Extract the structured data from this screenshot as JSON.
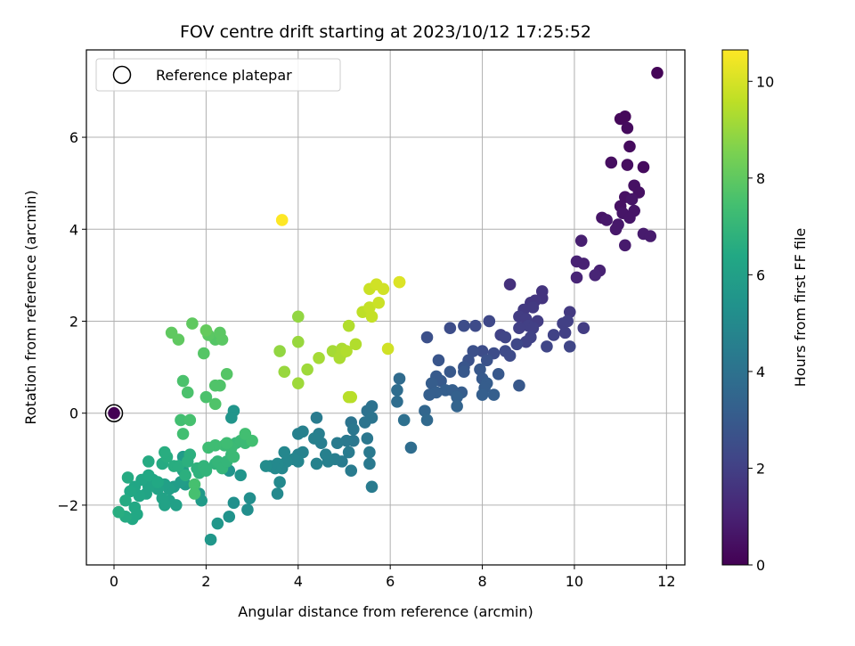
{
  "chart_data": {
    "type": "scatter",
    "title": "FOV centre drift starting at 2023/10/12 17:25:52",
    "xlabel": "Angular distance from reference (arcmin)",
    "ylabel": "Rotation from reference (arcmin)",
    "colorbar_label": "Hours from first FF file",
    "xlim": [
      -0.6,
      12.4
    ],
    "ylim": [
      -3.3,
      7.9
    ],
    "clim": [
      0,
      10.65
    ],
    "colormap": "viridis",
    "x_ticks": [
      0,
      2,
      4,
      6,
      8,
      10,
      12
    ],
    "x_tick_labels": [
      "0",
      "2",
      "4",
      "6",
      "8",
      "10",
      "12"
    ],
    "y_ticks": [
      -2,
      0,
      2,
      4,
      6
    ],
    "y_tick_labels": [
      "−2",
      "0",
      "2",
      "4",
      "6"
    ],
    "c_ticks": [
      0,
      2,
      4,
      6,
      8,
      10
    ],
    "c_tick_labels": [
      "0",
      "2",
      "4",
      "6",
      "8",
      "10"
    ],
    "grid": true,
    "legend": {
      "label": "Reference platepar",
      "position": "top-left"
    },
    "reference_point": {
      "x": 0,
      "y": 0,
      "c": 0
    },
    "points": [
      [
        11.8,
        7.4,
        0.1
      ],
      [
        11.1,
        6.45,
        0.2
      ],
      [
        11.0,
        6.4,
        0.2
      ],
      [
        11.15,
        6.2,
        0.3
      ],
      [
        11.2,
        5.8,
        0.3
      ],
      [
        11.15,
        5.4,
        0.4
      ],
      [
        11.5,
        5.35,
        0.3
      ],
      [
        10.8,
        5.45,
        0.4
      ],
      [
        11.3,
        4.95,
        0.5
      ],
      [
        11.4,
        4.8,
        0.5
      ],
      [
        11.1,
        4.7,
        0.5
      ],
      [
        11.25,
        4.65,
        0.6
      ],
      [
        11.0,
        4.5,
        0.5
      ],
      [
        11.3,
        4.4,
        0.6
      ],
      [
        11.05,
        4.35,
        0.6
      ],
      [
        10.6,
        4.25,
        0.6
      ],
      [
        10.7,
        4.2,
        0.7
      ],
      [
        11.2,
        4.25,
        0.6
      ],
      [
        10.95,
        4.1,
        0.7
      ],
      [
        10.9,
        4.0,
        0.7
      ],
      [
        11.5,
        3.9,
        0.8
      ],
      [
        11.65,
        3.85,
        0.8
      ],
      [
        11.1,
        3.65,
        0.8
      ],
      [
        10.15,
        3.75,
        0.9
      ],
      [
        10.05,
        3.3,
        1.0
      ],
      [
        10.2,
        3.25,
        1.0
      ],
      [
        10.55,
        3.1,
        1.0
      ],
      [
        10.45,
        3.0,
        1.1
      ],
      [
        10.05,
        2.95,
        1.1
      ],
      [
        8.6,
        2.8,
        1.5
      ],
      [
        9.3,
        2.65,
        1.6
      ],
      [
        9.3,
        2.5,
        1.6
      ],
      [
        9.05,
        2.4,
        1.7
      ],
      [
        9.15,
        2.45,
        1.7
      ],
      [
        8.9,
        2.25,
        1.8
      ],
      [
        9.1,
        2.3,
        1.8
      ],
      [
        8.8,
        2.1,
        1.9
      ],
      [
        8.95,
        2.05,
        1.9
      ],
      [
        9.9,
        2.2,
        1.8
      ],
      [
        9.2,
        2.0,
        1.9
      ],
      [
        9.85,
        2.0,
        2.0
      ],
      [
        9.75,
        1.95,
        2.0
      ],
      [
        9.0,
        1.9,
        2.0
      ],
      [
        8.8,
        1.85,
        2.0
      ],
      [
        9.1,
        1.85,
        2.0
      ],
      [
        8.4,
        1.7,
        2.1
      ],
      [
        10.2,
        1.85,
        1.9
      ],
      [
        9.8,
        1.75,
        2.0
      ],
      [
        9.55,
        1.7,
        2.1
      ],
      [
        9.05,
        1.65,
        2.1
      ],
      [
        8.95,
        1.55,
        2.1
      ],
      [
        8.5,
        1.65,
        2.2
      ],
      [
        8.15,
        2.0,
        2.3
      ],
      [
        7.85,
        1.9,
        2.4
      ],
      [
        7.6,
        1.9,
        2.5
      ],
      [
        7.3,
        1.85,
        2.5
      ],
      [
        6.8,
        1.65,
        2.6
      ],
      [
        9.4,
        1.45,
        2.2
      ],
      [
        9.9,
        1.45,
        2.2
      ],
      [
        8.75,
        1.5,
        2.3
      ],
      [
        8.5,
        1.35,
        2.4
      ],
      [
        8.6,
        1.25,
        2.4
      ],
      [
        8.0,
        1.35,
        2.5
      ],
      [
        8.25,
        1.3,
        2.5
      ],
      [
        7.8,
        1.35,
        2.6
      ],
      [
        7.7,
        1.15,
        2.7
      ],
      [
        8.1,
        1.15,
        2.7
      ],
      [
        7.05,
        1.15,
        2.8
      ],
      [
        7.6,
        1.0,
        2.8
      ],
      [
        7.95,
        0.95,
        2.9
      ],
      [
        7.3,
        0.9,
        2.9
      ],
      [
        7.6,
        0.9,
        2.9
      ],
      [
        8.35,
        0.85,
        2.9
      ],
      [
        8.0,
        0.75,
        3.0
      ],
      [
        7.0,
        0.8,
        3.0
      ],
      [
        7.1,
        0.7,
        3.0
      ],
      [
        6.9,
        0.65,
        3.1
      ],
      [
        7.2,
        0.5,
        3.2
      ],
      [
        7.0,
        0.45,
        3.2
      ],
      [
        6.85,
        0.4,
        3.2
      ],
      [
        7.55,
        0.45,
        3.1
      ],
      [
        7.35,
        0.5,
        3.2
      ],
      [
        8.1,
        0.65,
        3.1
      ],
      [
        8.05,
        0.55,
        3.1
      ],
      [
        8.0,
        0.4,
        3.2
      ],
      [
        8.25,
        0.4,
        3.2
      ],
      [
        8.8,
        0.6,
        2.9
      ],
      [
        7.45,
        0.35,
        3.3
      ],
      [
        7.45,
        0.15,
        3.4
      ],
      [
        6.75,
        0.05,
        3.5
      ],
      [
        6.8,
        -0.15,
        3.6
      ],
      [
        6.45,
        -0.75,
        3.8
      ],
      [
        6.3,
        -0.15,
        3.9
      ],
      [
        6.2,
        0.75,
        3.7
      ],
      [
        6.15,
        0.5,
        3.8
      ],
      [
        6.15,
        0.25,
        3.8
      ],
      [
        5.6,
        0.15,
        4.0
      ],
      [
        5.5,
        0.05,
        4.0
      ],
      [
        5.6,
        -0.1,
        4.1
      ],
      [
        5.45,
        -0.2,
        4.1
      ],
      [
        5.15,
        -0.2,
        4.1
      ],
      [
        5.2,
        -0.35,
        4.2
      ],
      [
        5.2,
        -0.6,
        4.2
      ],
      [
        5.5,
        -0.55,
        4.2
      ],
      [
        5.55,
        -0.85,
        4.3
      ],
      [
        5.55,
        -1.1,
        4.3
      ],
      [
        5.6,
        -1.6,
        4.4
      ],
      [
        5.05,
        -0.6,
        4.3
      ],
      [
        5.1,
        -0.85,
        4.4
      ],
      [
        5.15,
        -1.25,
        4.4
      ],
      [
        4.95,
        -1.05,
        4.4
      ],
      [
        4.8,
        -1.0,
        4.5
      ],
      [
        4.85,
        -0.65,
        4.4
      ],
      [
        4.5,
        -0.65,
        4.5
      ],
      [
        4.45,
        -0.45,
        4.5
      ],
      [
        4.4,
        -0.1,
        4.4
      ],
      [
        4.35,
        -0.55,
        4.6
      ],
      [
        4.1,
        -0.4,
        4.6
      ],
      [
        4.0,
        -0.45,
        4.6
      ],
      [
        4.1,
        -0.85,
        4.7
      ],
      [
        4.0,
        -0.9,
        4.7
      ],
      [
        4.6,
        -0.9,
        4.6
      ],
      [
        4.65,
        -1.05,
        4.6
      ],
      [
        4.4,
        -1.1,
        4.7
      ],
      [
        4.0,
        -1.05,
        4.8
      ],
      [
        3.9,
        -1.0,
        4.8
      ],
      [
        3.75,
        -1.05,
        4.9
      ],
      [
        3.65,
        -1.2,
        4.9
      ],
      [
        3.7,
        -0.85,
        4.9
      ],
      [
        3.55,
        -1.1,
        5.0
      ],
      [
        3.5,
        -1.2,
        5.0
      ],
      [
        3.4,
        -1.15,
        5.0
      ],
      [
        3.3,
        -1.15,
        5.1
      ],
      [
        3.6,
        -1.5,
        5.0
      ],
      [
        3.55,
        -1.75,
        5.0
      ],
      [
        2.95,
        -1.85,
        5.2
      ],
      [
        2.9,
        -2.1,
        5.2
      ],
      [
        2.6,
        -1.95,
        5.3
      ],
      [
        2.5,
        -2.25,
        5.4
      ],
      [
        2.6,
        0.05,
        5.5
      ],
      [
        2.55,
        -0.1,
        5.5
      ],
      [
        2.5,
        -1.25,
        5.5
      ],
      [
        2.75,
        -1.35,
        5.5
      ],
      [
        2.4,
        -1.1,
        5.6
      ],
      [
        2.25,
        -2.4,
        5.6
      ],
      [
        2.1,
        -2.75,
        5.6
      ],
      [
        1.85,
        -1.75,
        5.7
      ],
      [
        1.9,
        -1.9,
        5.8
      ],
      [
        1.55,
        -1.55,
        5.8
      ],
      [
        1.5,
        -0.95,
        5.8
      ],
      [
        1.5,
        -1.25,
        5.9
      ],
      [
        1.45,
        -1.5,
        5.9
      ],
      [
        1.3,
        -1.6,
        5.9
      ],
      [
        1.35,
        -2.0,
        6.0
      ],
      [
        1.2,
        -1.9,
        6.0
      ],
      [
        1.2,
        -1.65,
        6.0
      ],
      [
        1.1,
        -1.55,
        6.0
      ],
      [
        1.05,
        -1.85,
        6.1
      ],
      [
        1.1,
        -2.0,
        6.1
      ],
      [
        0.95,
        -1.65,
        6.1
      ],
      [
        0.85,
        -1.45,
        6.2
      ],
      [
        0.75,
        -1.6,
        6.2
      ],
      [
        0.7,
        -1.75,
        6.2
      ],
      [
        0.6,
        -1.45,
        6.3
      ],
      [
        0.55,
        -1.8,
        6.3
      ],
      [
        0.45,
        -1.6,
        6.3
      ],
      [
        0.45,
        -2.05,
        6.4
      ],
      [
        0.5,
        -2.2,
        6.4
      ],
      [
        0.4,
        -2.3,
        6.4
      ],
      [
        0.35,
        -1.7,
        6.4
      ],
      [
        0.3,
        -1.4,
        6.5
      ],
      [
        0.25,
        -1.9,
        6.5
      ],
      [
        0.25,
        -2.25,
        6.5
      ],
      [
        0.1,
        -2.15,
        6.6
      ],
      [
        0.75,
        -1.35,
        6.4
      ],
      [
        0.75,
        -1.05,
        6.5
      ],
      [
        0.95,
        -1.5,
        6.4
      ],
      [
        1.05,
        -1.1,
        6.5
      ],
      [
        1.15,
        -0.95,
        6.6
      ],
      [
        1.1,
        -0.85,
        6.6
      ],
      [
        1.3,
        -1.15,
        6.6
      ],
      [
        1.4,
        -1.15,
        6.6
      ],
      [
        1.55,
        -1.35,
        6.7
      ],
      [
        1.6,
        -1.05,
        6.7
      ],
      [
        1.65,
        -0.9,
        6.7
      ],
      [
        1.8,
        -1.2,
        6.8
      ],
      [
        1.85,
        -1.3,
        6.8
      ],
      [
        1.95,
        -1.15,
        6.9
      ],
      [
        2.0,
        -1.25,
        6.9
      ],
      [
        2.2,
        -1.1,
        6.9
      ],
      [
        2.25,
        -1.05,
        7.0
      ],
      [
        2.35,
        -1.2,
        7.0
      ],
      [
        2.45,
        -1.05,
        7.0
      ],
      [
        2.55,
        -0.9,
        7.1
      ],
      [
        2.65,
        -0.65,
        7.1
      ],
      [
        2.75,
        -0.6,
        7.2
      ],
      [
        2.85,
        -0.65,
        7.2
      ],
      [
        2.6,
        -0.95,
        7.2
      ],
      [
        2.4,
        -0.7,
        7.2
      ],
      [
        2.55,
        -0.75,
        7.2
      ],
      [
        2.45,
        -0.65,
        7.3
      ],
      [
        2.2,
        -0.7,
        7.3
      ],
      [
        2.05,
        -0.75,
        7.3
      ],
      [
        3.0,
        -0.6,
        7.4
      ],
      [
        2.85,
        -0.45,
        7.4
      ],
      [
        1.5,
        -0.45,
        7.4
      ],
      [
        1.45,
        -0.15,
        7.4
      ],
      [
        1.65,
        -0.15,
        7.5
      ],
      [
        1.75,
        -1.55,
        7.5
      ],
      [
        1.75,
        -1.75,
        7.5
      ],
      [
        1.6,
        0.45,
        7.6
      ],
      [
        1.5,
        0.7,
        7.6
      ],
      [
        2.0,
        0.35,
        7.6
      ],
      [
        2.2,
        0.2,
        7.7
      ],
      [
        2.3,
        0.6,
        7.7
      ],
      [
        2.2,
        0.6,
        7.7
      ],
      [
        2.45,
        0.85,
        7.8
      ],
      [
        1.95,
        1.3,
        7.8
      ],
      [
        2.2,
        1.6,
        7.8
      ],
      [
        2.35,
        1.6,
        7.9
      ],
      [
        2.05,
        1.7,
        7.9
      ],
      [
        2.3,
        1.75,
        7.9
      ],
      [
        1.25,
        1.75,
        8.0
      ],
      [
        1.4,
        1.6,
        8.0
      ],
      [
        1.7,
        1.95,
        8.0
      ],
      [
        2.0,
        1.8,
        8.1
      ],
      [
        4.0,
        2.1,
        8.9
      ],
      [
        3.6,
        1.35,
        8.9
      ],
      [
        4.0,
        1.55,
        9.0
      ],
      [
        3.7,
        0.9,
        9.0
      ],
      [
        4.2,
        0.95,
        9.1
      ],
      [
        4.0,
        0.65,
        9.1
      ],
      [
        4.45,
        1.2,
        9.2
      ],
      [
        4.75,
        1.35,
        9.2
      ],
      [
        4.95,
        1.3,
        9.3
      ],
      [
        4.9,
        1.2,
        9.3
      ],
      [
        4.95,
        1.4,
        9.3
      ],
      [
        5.05,
        1.35,
        9.4
      ],
      [
        5.25,
        1.5,
        9.4
      ],
      [
        5.1,
        1.9,
        9.4
      ],
      [
        5.1,
        0.35,
        9.5
      ],
      [
        5.15,
        0.35,
        9.5
      ],
      [
        5.4,
        2.2,
        9.6
      ],
      [
        5.55,
        2.3,
        9.7
      ],
      [
        5.6,
        2.1,
        9.7
      ],
      [
        5.75,
        2.4,
        9.8
      ],
      [
        5.55,
        2.7,
        9.8
      ],
      [
        5.7,
        2.8,
        9.9
      ],
      [
        5.85,
        2.7,
        9.9
      ],
      [
        5.95,
        1.4,
        9.9
      ],
      [
        6.2,
        2.85,
        10.0
      ],
      [
        6.2,
        2.85,
        10.1
      ],
      [
        3.65,
        4.2,
        10.65
      ]
    ]
  }
}
